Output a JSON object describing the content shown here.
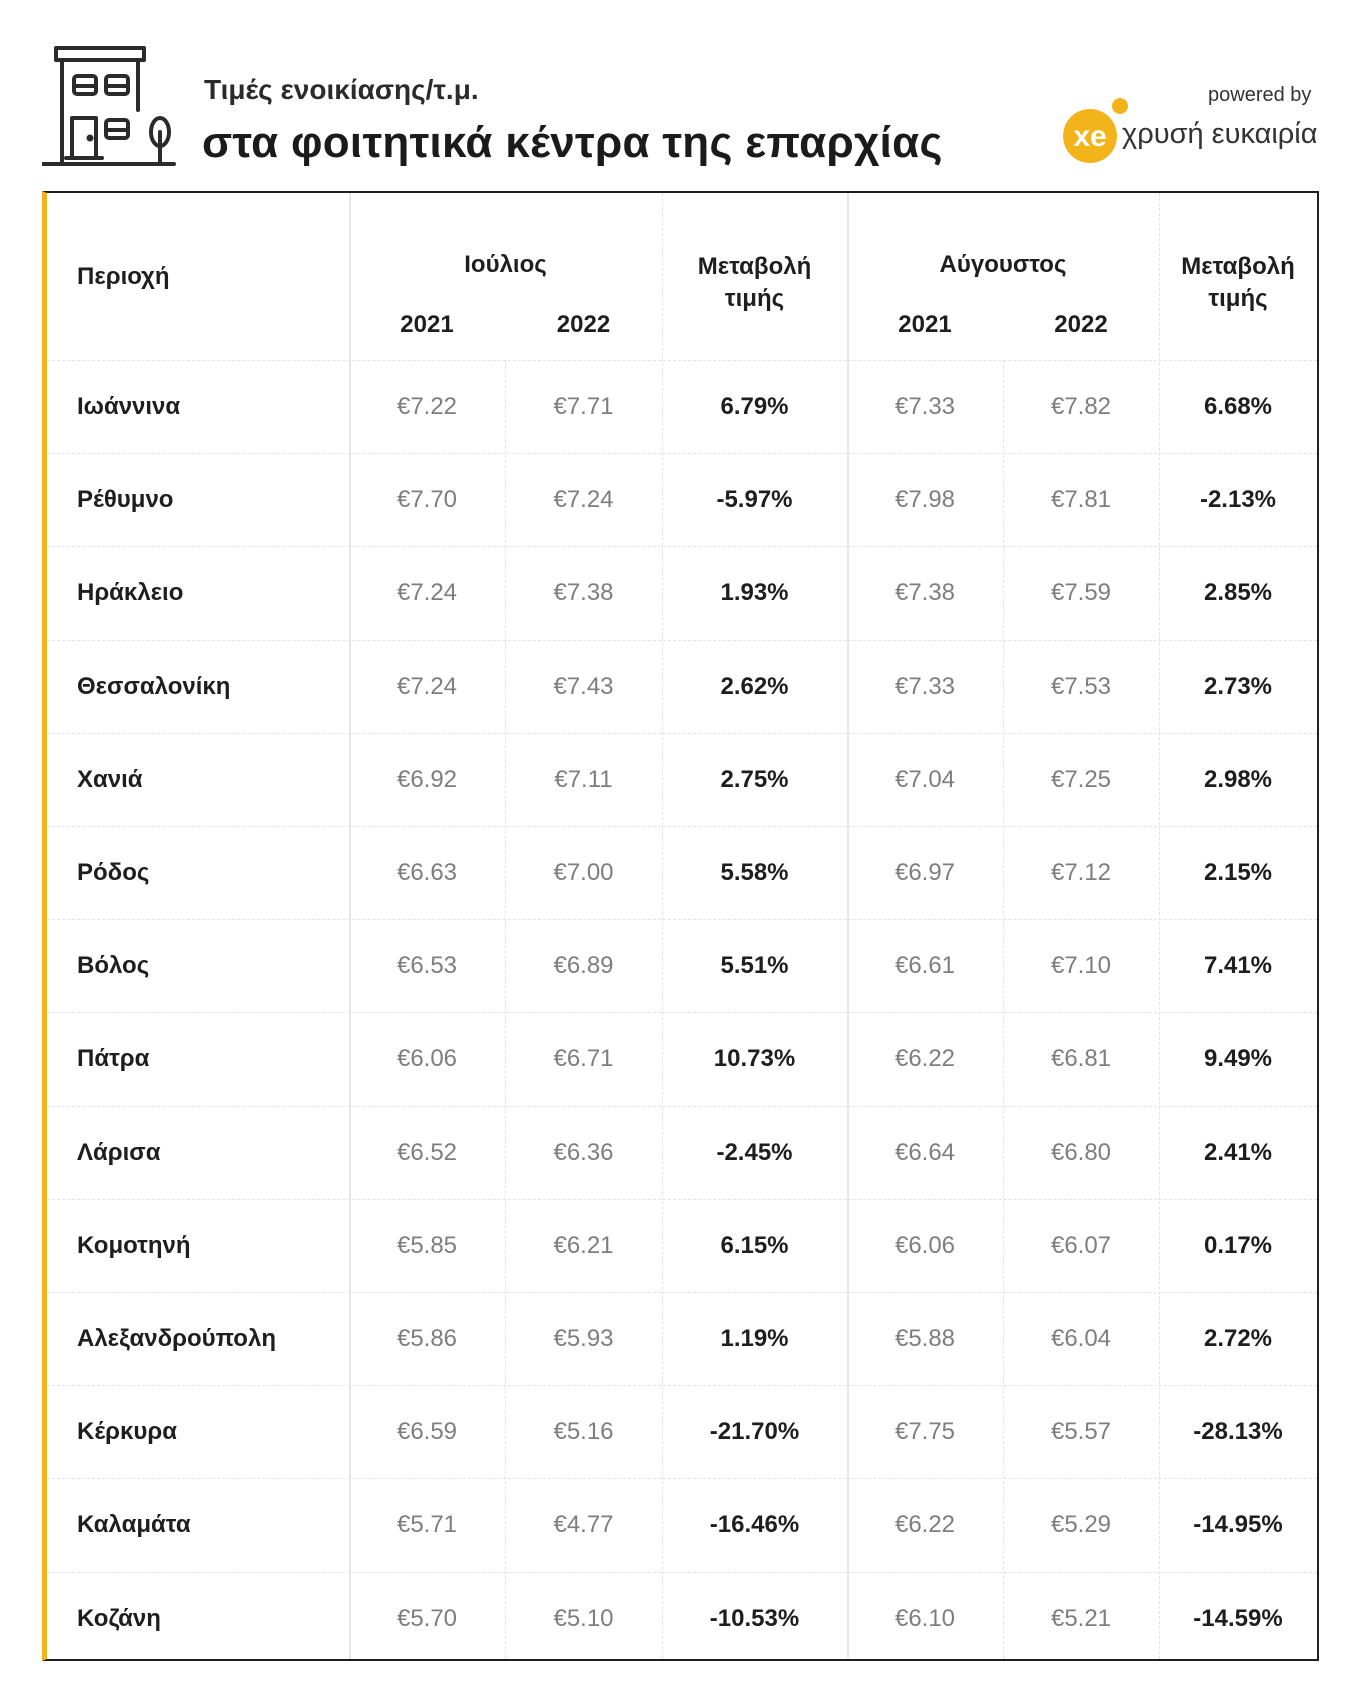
{
  "header": {
    "subtitle": "Τιμές ενοικίασης/τ.μ.",
    "title": "στα φοιτητικά κέντρα της επαρχίας",
    "powered_by": "powered by",
    "logo_text": "xe",
    "brand": "χρυσή ευκαιρία",
    "accent_color": "#f3b41b"
  },
  "table": {
    "col_region": "Περιοχή",
    "july": "Ιούλιος",
    "august": "Αύγουστος",
    "year_2021": "2021",
    "year_2022": "2022",
    "change_line1": "Μεταβολή",
    "change_line2": "τιμής",
    "rows": [
      {
        "region": "Ιωάννινα",
        "jul_2021": "€7.22",
        "jul_2022": "€7.71",
        "jul_change": "6.79%",
        "aug_2021": "€7.33",
        "aug_2022": "€7.82",
        "aug_change": "6.68%"
      },
      {
        "region": "Ρέθυμνο",
        "jul_2021": "€7.70",
        "jul_2022": "€7.24",
        "jul_change": "-5.97%",
        "aug_2021": "€7.98",
        "aug_2022": "€7.81",
        "aug_change": "-2.13%"
      },
      {
        "region": "Ηράκλειο",
        "jul_2021": "€7.24",
        "jul_2022": "€7.38",
        "jul_change": "1.93%",
        "aug_2021": "€7.38",
        "aug_2022": "€7.59",
        "aug_change": "2.85%"
      },
      {
        "region": "Θεσσαλονίκη",
        "jul_2021": "€7.24",
        "jul_2022": "€7.43",
        "jul_change": "2.62%",
        "aug_2021": "€7.33",
        "aug_2022": "€7.53",
        "aug_change": "2.73%"
      },
      {
        "region": "Χανιά",
        "jul_2021": "€6.92",
        "jul_2022": "€7.11",
        "jul_change": "2.75%",
        "aug_2021": "€7.04",
        "aug_2022": "€7.25",
        "aug_change": "2.98%"
      },
      {
        "region": "Ρόδος",
        "jul_2021": "€6.63",
        "jul_2022": "€7.00",
        "jul_change": "5.58%",
        "aug_2021": "€6.97",
        "aug_2022": "€7.12",
        "aug_change": "2.15%"
      },
      {
        "region": "Βόλος",
        "jul_2021": "€6.53",
        "jul_2022": "€6.89",
        "jul_change": "5.51%",
        "aug_2021": "€6.61",
        "aug_2022": "€7.10",
        "aug_change": "7.41%"
      },
      {
        "region": "Πάτρα",
        "jul_2021": "€6.06",
        "jul_2022": "€6.71",
        "jul_change": "10.73%",
        "aug_2021": "€6.22",
        "aug_2022": "€6.81",
        "aug_change": "9.49%"
      },
      {
        "region": "Λάρισα",
        "jul_2021": "€6.52",
        "jul_2022": "€6.36",
        "jul_change": "-2.45%",
        "aug_2021": "€6.64",
        "aug_2022": "€6.80",
        "aug_change": "2.41%"
      },
      {
        "region": "Κομοτηνή",
        "jul_2021": "€5.85",
        "jul_2022": "€6.21",
        "jul_change": "6.15%",
        "aug_2021": "€6.06",
        "aug_2022": "€6.07",
        "aug_change": "0.17%"
      },
      {
        "region": "Αλεξανδρούπολη",
        "jul_2021": "€5.86",
        "jul_2022": "€5.93",
        "jul_change": "1.19%",
        "aug_2021": "€5.88",
        "aug_2022": "€6.04",
        "aug_change": "2.72%"
      },
      {
        "region": "Κέρκυρα",
        "jul_2021": "€6.59",
        "jul_2022": "€5.16",
        "jul_change": "-21.70%",
        "aug_2021": "€7.75",
        "aug_2022": "€5.57",
        "aug_change": "-28.13%"
      },
      {
        "region": "Καλαμάτα",
        "jul_2021": "€5.71",
        "jul_2022": "€4.77",
        "jul_change": "-16.46%",
        "aug_2021": "€6.22",
        "aug_2022": "€5.29",
        "aug_change": "-14.95%"
      },
      {
        "region": "Κοζάνη",
        "jul_2021": "€5.70",
        "jul_2022": "€5.10",
        "jul_change": "-10.53%",
        "aug_2021": "€6.10",
        "aug_2022": "€5.21",
        "aug_change": "-14.59%"
      }
    ]
  }
}
